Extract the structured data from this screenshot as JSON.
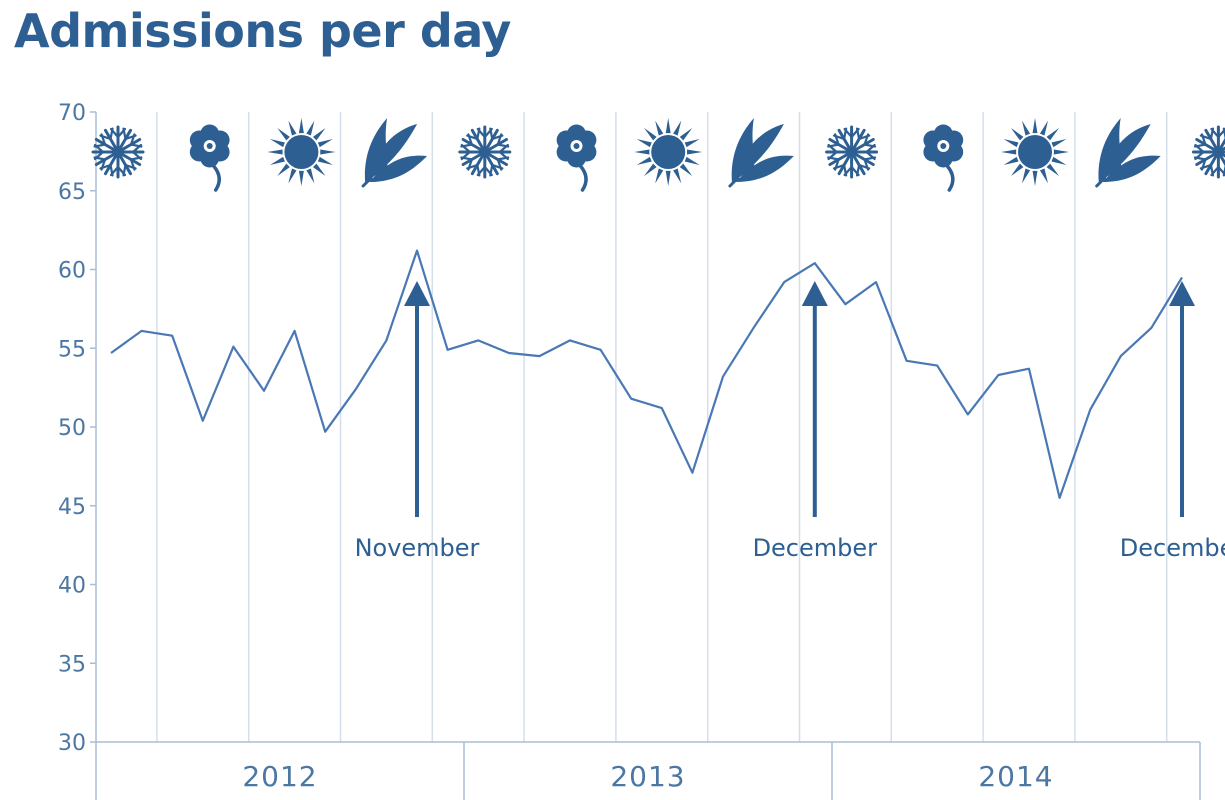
{
  "chart_data": {
    "type": "line",
    "title": "Admissions per day",
    "ylim": [
      30,
      70
    ],
    "yticks": [
      30,
      35,
      40,
      45,
      50,
      55,
      60,
      65,
      70
    ],
    "grid": "vertical lines between seasons",
    "years": [
      "2012",
      "2013",
      "2014"
    ],
    "seasons": [
      "snowflake-icon",
      "flower-icon",
      "sun-icon",
      "leaf-icon",
      "snowflake-icon",
      "flower-icon",
      "sun-icon",
      "leaf-icon",
      "snowflake-icon",
      "flower-icon",
      "sun-icon",
      "leaf-icon",
      "snowflake-icon"
    ],
    "season_boundaries": [
      1.5,
      4.5,
      7.5,
      10.5,
      13.5,
      16.5,
      19.5,
      22.5,
      25.5,
      28.5,
      31.5,
      34.5
    ],
    "series": [
      {
        "x": [
          0,
          1,
          2,
          3,
          4,
          5,
          6,
          7,
          8,
          9,
          10,
          11,
          12,
          13,
          14,
          15,
          16,
          17,
          18,
          19,
          20,
          21,
          22,
          23,
          24,
          25,
          26,
          27,
          28,
          29,
          30,
          31,
          32,
          33,
          34,
          35
        ],
        "values": [
          54.7,
          56.1,
          55.8,
          50.4,
          55.1,
          52.3,
          56.1,
          49.7,
          52.4,
          55.5,
          61.2,
          54.9,
          55.5,
          54.7,
          54.5,
          55.5,
          54.9,
          51.8,
          51.2,
          47.1,
          53.2,
          56.3,
          59.2,
          60.4,
          57.8,
          59.2,
          54.2,
          53.9,
          50.8,
          53.3,
          53.7,
          45.5,
          51.1,
          54.5,
          56.3,
          59.5
        ]
      }
    ],
    "annotations": [
      {
        "label": "November",
        "x": 10
      },
      {
        "label": "December",
        "x": 23
      },
      {
        "label": "December",
        "x": 35
      }
    ],
    "colors": {
      "line": "#4a78b5",
      "icons": "#2e5f92",
      "grid": "#d5dfec",
      "axis": "#a9bdd6",
      "text": "#4d77a3",
      "title": "#2e5f92"
    }
  }
}
